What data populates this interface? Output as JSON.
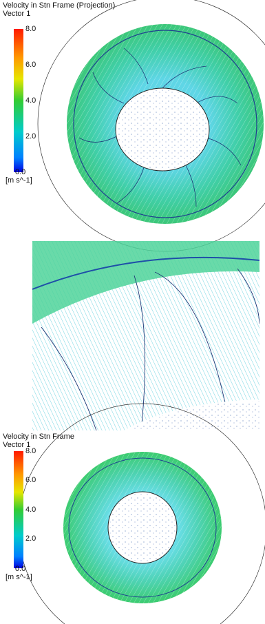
{
  "panels": [
    {
      "title": "Velocity in Stn Frame (Projection)",
      "subtitle": "Vector 1",
      "legend": {
        "ticks": [
          "8.0",
          "6.0",
          "4.0",
          "2.0",
          "0.0"
        ],
        "unit": "[m s^-1]"
      }
    },
    {
      "title": "Velocity in Stn Frame",
      "subtitle": "Vector 1",
      "legend": {
        "ticks": [
          "8.0",
          "6.0",
          "4.0",
          "2.0",
          "0.0"
        ],
        "unit": "[m s^-1]"
      }
    }
  ]
}
